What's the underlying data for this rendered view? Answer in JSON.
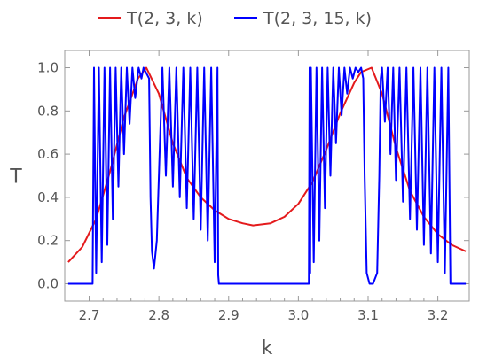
{
  "chart_data": {
    "type": "line",
    "title": "",
    "xlabel": "k",
    "ylabel": "T",
    "xlim": [
      2.665,
      3.245
    ],
    "ylim": [
      -0.08,
      1.08
    ],
    "x_ticks": [
      "2.7",
      "2.8",
      "2.9",
      "3.0",
      "3.1",
      "3.2"
    ],
    "y_ticks": [
      "0.0",
      "0.2",
      "0.4",
      "0.6",
      "0.8",
      "1.0"
    ],
    "grid": false,
    "legend_position": "top",
    "series": [
      {
        "name": "T(2, 3, k)",
        "color": "#e41a1c",
        "x": [
          2.67,
          2.69,
          2.71,
          2.73,
          2.75,
          2.77,
          2.782,
          2.8,
          2.82,
          2.84,
          2.86,
          2.88,
          2.9,
          2.92,
          2.935,
          2.96,
          2.98,
          3.0,
          3.02,
          3.04,
          3.06,
          3.08,
          3.09,
          3.105,
          3.12,
          3.14,
          3.16,
          3.18,
          3.2,
          3.22,
          3.24
        ],
        "y": [
          0.1,
          0.17,
          0.3,
          0.52,
          0.77,
          0.95,
          1.0,
          0.88,
          0.65,
          0.49,
          0.4,
          0.34,
          0.3,
          0.28,
          0.27,
          0.28,
          0.31,
          0.37,
          0.47,
          0.62,
          0.79,
          0.93,
          0.98,
          1.0,
          0.88,
          0.63,
          0.43,
          0.31,
          0.23,
          0.18,
          0.15
        ]
      },
      {
        "name": "T(2, 3, 15, k)",
        "color": "#0000ff",
        "x": [
          2.67,
          2.705,
          2.707,
          2.71,
          2.714,
          2.718,
          2.722,
          2.726,
          2.73,
          2.734,
          2.738,
          2.742,
          2.746,
          2.75,
          2.754,
          2.758,
          2.762,
          2.766,
          2.771,
          2.775,
          2.778,
          2.786,
          2.788,
          2.79,
          2.793,
          2.797,
          2.801,
          2.805,
          2.81,
          2.815,
          2.82,
          2.825,
          2.83,
          2.835,
          2.84,
          2.845,
          2.85,
          2.855,
          2.86,
          2.865,
          2.87,
          2.875,
          2.88,
          2.884,
          2.885,
          2.886,
          2.887,
          3.015,
          3.016,
          3.017,
          3.018,
          3.022,
          3.026,
          3.03,
          3.034,
          3.038,
          3.042,
          3.046,
          3.05,
          3.054,
          3.058,
          3.062,
          3.066,
          3.07,
          3.074,
          3.078,
          3.082,
          3.086,
          3.09,
          3.093,
          3.095,
          3.098,
          3.102,
          3.107,
          3.113,
          3.116,
          3.118,
          3.12,
          3.124,
          3.128,
          3.132,
          3.136,
          3.14,
          3.145,
          3.15,
          3.155,
          3.16,
          3.165,
          3.17,
          3.175,
          3.18,
          3.185,
          3.19,
          3.195,
          3.2,
          3.205,
          3.21,
          3.215,
          3.218,
          3.219,
          3.22,
          3.24
        ],
        "y": [
          0.0,
          0.0,
          1.0,
          0.05,
          1.0,
          0.1,
          1.0,
          0.18,
          1.0,
          0.3,
          1.0,
          0.45,
          1.0,
          0.6,
          1.0,
          0.74,
          1.0,
          0.86,
          1.0,
          0.95,
          1.0,
          0.95,
          0.4,
          0.15,
          0.07,
          0.2,
          0.6,
          1.0,
          0.5,
          1.0,
          0.45,
          1.0,
          0.4,
          1.0,
          0.35,
          1.0,
          0.3,
          1.0,
          0.25,
          1.0,
          0.2,
          1.0,
          0.1,
          1.0,
          0.04,
          0.0,
          0.0,
          0.0,
          1.0,
          0.05,
          1.0,
          0.1,
          1.0,
          0.2,
          1.0,
          0.35,
          1.0,
          0.5,
          1.0,
          0.65,
          1.0,
          0.78,
          1.0,
          0.88,
          1.0,
          0.95,
          1.0,
          0.98,
          1.0,
          0.95,
          0.5,
          0.05,
          0.0,
          0.0,
          0.05,
          0.5,
          0.95,
          1.0,
          0.75,
          1.0,
          0.6,
          1.0,
          0.48,
          1.0,
          0.38,
          1.0,
          0.3,
          1.0,
          0.25,
          1.0,
          0.18,
          1.0,
          0.14,
          1.0,
          0.1,
          1.0,
          0.05,
          1.0,
          0.0,
          0.0,
          0.0,
          0.0
        ]
      }
    ]
  }
}
